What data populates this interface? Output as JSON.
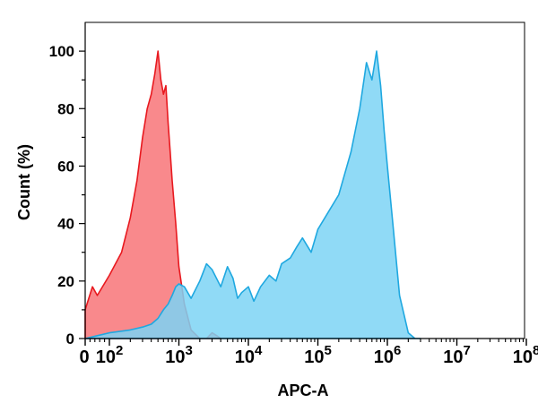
{
  "chart_data": {
    "type": "area",
    "xlabel": "APC-A",
    "ylabel": "Count  (%)",
    "x_scale": "biexponential",
    "xlim": [
      0,
      100000000
    ],
    "ylim": [
      0,
      110
    ],
    "y_ticks": [
      0,
      20,
      40,
      60,
      80,
      100
    ],
    "x_ticks": [
      {
        "value": 0,
        "base": "0",
        "exp": ""
      },
      {
        "value": 100,
        "base": "10",
        "exp": "2"
      },
      {
        "value": 1000,
        "base": "10",
        "exp": "3"
      },
      {
        "value": 10000,
        "base": "10",
        "exp": "4"
      },
      {
        "value": 100000,
        "base": "10",
        "exp": "5"
      },
      {
        "value": 1000000,
        "base": "10",
        "exp": "6"
      },
      {
        "value": 10000000,
        "base": "10",
        "exp": "7"
      },
      {
        "value": 100000000,
        "base": "10",
        "exp": "8"
      }
    ],
    "grid": false,
    "legend": "none",
    "series": [
      {
        "fill": "#f8797c",
        "stroke": "#e8191f",
        "opacity": 0.88,
        "x": [
          0,
          15,
          30,
          50,
          100,
          150,
          200,
          250,
          300,
          350,
          400,
          450,
          500,
          550,
          600,
          650,
          700,
          750,
          800,
          900,
          1000,
          1200,
          1500,
          2000,
          2500,
          3000,
          3500,
          4000
        ],
        "y": [
          10,
          14,
          18,
          15,
          22,
          30,
          42,
          55,
          70,
          80,
          85,
          92,
          100,
          90,
          85,
          88,
          75,
          65,
          55,
          40,
          25,
          12,
          3,
          0,
          0,
          2,
          1,
          0
        ]
      },
      {
        "fill": "#7dd3f4",
        "stroke": "#1fa8e0",
        "opacity": 0.85,
        "x": [
          0,
          50,
          100,
          200,
          300,
          400,
          500,
          600,
          700,
          800,
          900,
          1000,
          1200,
          1500,
          2000,
          2500,
          3000,
          4000,
          5000,
          6000,
          7000,
          8000,
          10000,
          12000,
          15000,
          20000,
          25000,
          30000,
          40000,
          50000,
          60000,
          80000,
          100000,
          150000,
          200000,
          300000,
          400000,
          500000,
          600000,
          700000,
          800000,
          900000,
          1000000,
          1200000,
          1500000,
          2000000,
          2500000,
          3000000
        ],
        "y": [
          0,
          1,
          2,
          3,
          4,
          5,
          7,
          10,
          12,
          15,
          18,
          19,
          18,
          14,
          20,
          26,
          24,
          18,
          25,
          21,
          14,
          16,
          18,
          13,
          18,
          22,
          20,
          26,
          28,
          32,
          35,
          30,
          38,
          45,
          50,
          65,
          80,
          96,
          90,
          100,
          88,
          72,
          60,
          40,
          15,
          2,
          0,
          0
        ]
      }
    ]
  }
}
